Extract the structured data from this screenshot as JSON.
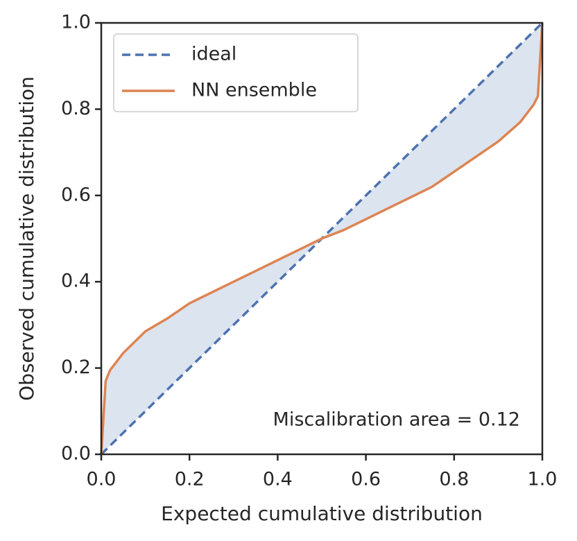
{
  "chart_data": {
    "type": "line",
    "xlabel": "Expected cumulative distribution",
    "ylabel": "Observed cumulative distribution",
    "annotation": "Miscalibration area = 0.12",
    "xlim": [
      0,
      1
    ],
    "ylim": [
      0,
      1
    ],
    "xticks": [
      {
        "value": 0,
        "label": "0.0"
      },
      0.2,
      0.4,
      0.6,
      0.8,
      {
        "value": 1,
        "label": "1.0"
      }
    ],
    "yticks": [
      {
        "value": 0,
        "label": "0.0"
      },
      0.2,
      0.4,
      0.6,
      0.8,
      {
        "value": 1,
        "label": "1.0"
      }
    ],
    "legend": "upper left",
    "fill_between": true,
    "fill_color": "#dce4ef",
    "series": [
      {
        "name": "ideal",
        "color": "#4c72b0",
        "dashed": true,
        "x": [
          0,
          1
        ],
        "values": [
          0,
          1
        ]
      },
      {
        "name": "NN ensemble",
        "color": "#dd8452",
        "dashed": false,
        "x": [
          0,
          0.01,
          0.02,
          0.05,
          0.1,
          0.15,
          0.2,
          0.25,
          0.3,
          0.35,
          0.4,
          0.45,
          0.5,
          0.55,
          0.6,
          0.65,
          0.7,
          0.75,
          0.8,
          0.85,
          0.9,
          0.95,
          0.98,
          0.99,
          1.0
        ],
        "values": [
          0,
          0.17,
          0.195,
          0.235,
          0.285,
          0.315,
          0.35,
          0.375,
          0.4,
          0.425,
          0.45,
          0.475,
          0.5,
          0.52,
          0.545,
          0.57,
          0.595,
          0.62,
          0.655,
          0.69,
          0.725,
          0.77,
          0.81,
          0.83,
          1.0
        ]
      }
    ]
  }
}
